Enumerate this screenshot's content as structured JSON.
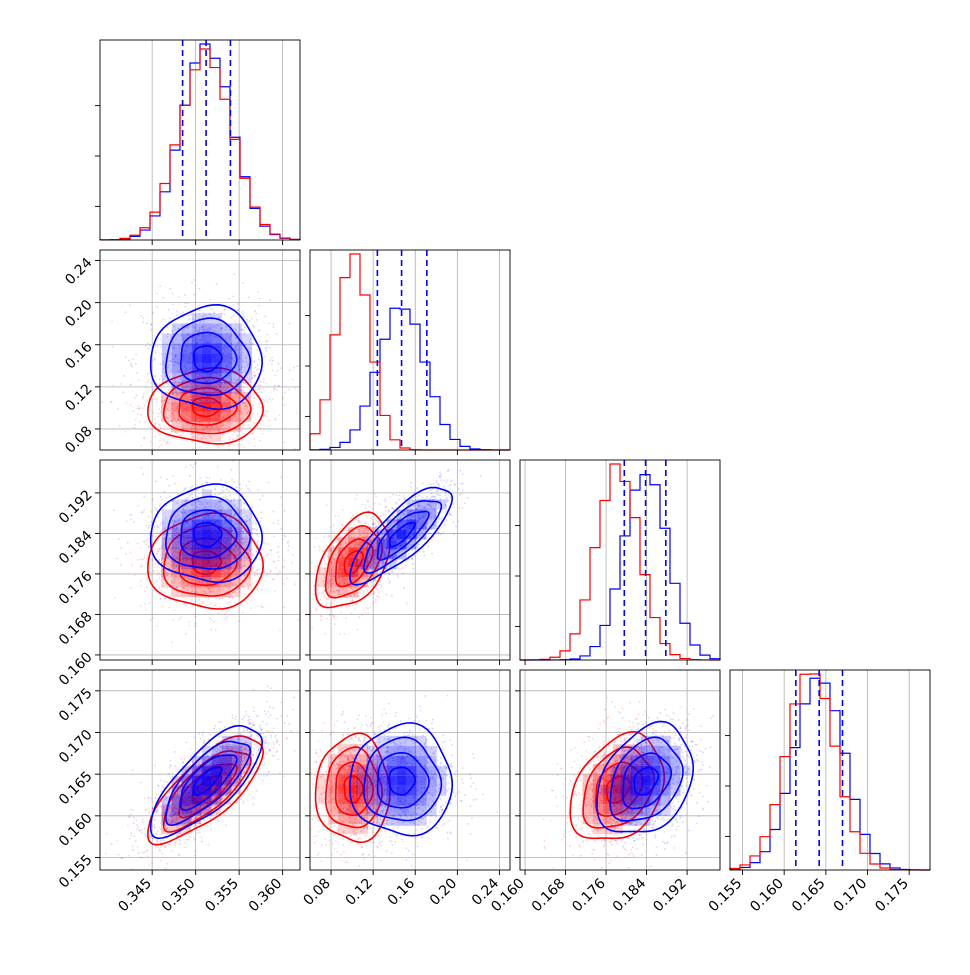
{
  "chart_data": {
    "type": "corner",
    "grid": true,
    "colors": {
      "series_a": "#0000ff",
      "series_b": "#ff0000",
      "frame": "#000000",
      "grid": "#b0b0b0"
    },
    "parameters": [
      {
        "range": [
          0.339,
          0.362
        ],
        "ticks": [
          0.345,
          0.35,
          0.355,
          0.36
        ],
        "tick_labels": [
          "0.345",
          "0.350",
          "0.355",
          "0.360"
        ],
        "mean_a": 0.3513,
        "sd_a": 0.0029,
        "mean_b": 0.3512,
        "sd_b": 0.003,
        "quantiles_a": [
          0.3485,
          0.3512,
          0.354
        ]
      },
      {
        "range": [
          0.06,
          0.25
        ],
        "ticks": [
          0.08,
          0.12,
          0.16,
          0.2,
          0.24
        ],
        "tick_labels": [
          "0.08",
          "0.12",
          "0.16",
          "0.20",
          "0.24"
        ],
        "mean_a": 0.147,
        "sd_a": 0.022,
        "mean_b": 0.101,
        "sd_b": 0.016,
        "quantiles_a": [
          0.124,
          0.147,
          0.171
        ]
      },
      {
        "range": [
          0.159,
          0.1985
        ],
        "ticks": [
          0.16,
          0.168,
          0.176,
          0.184,
          0.192
        ],
        "tick_labels": [
          "0.160",
          "0.168",
          "0.176",
          "0.184",
          "0.192"
        ],
        "mean_a": 0.1838,
        "sd_a": 0.0043,
        "mean_b": 0.1783,
        "sd_b": 0.0042,
        "quantiles_a": [
          0.1796,
          0.1838,
          0.1878
        ]
      },
      {
        "range": [
          0.1535,
          0.1775
        ],
        "ticks": [
          0.155,
          0.16,
          0.165,
          0.17,
          0.175
        ],
        "tick_labels": [
          "0.155",
          "0.160",
          "0.165",
          "0.170",
          "0.175"
        ],
        "mean_a": 0.1642,
        "sd_a": 0.003,
        "mean_b": 0.1632,
        "sd_b": 0.0029,
        "quantiles_a": [
          0.1614,
          0.1642,
          0.167
        ]
      }
    ],
    "correlations": {
      "1-0": {
        "a": 0.0,
        "b": 0.0
      },
      "2-0": {
        "a": 0.0,
        "b": 0.0
      },
      "2-1": {
        "a": 0.8,
        "b": 0.45
      },
      "3-0": {
        "a": 0.75,
        "b": 0.75
      },
      "3-1": {
        "a": 0.0,
        "b": 0.0
      },
      "3-2": {
        "a": 0.3,
        "b": 0.3
      }
    },
    "contour_levels_sigma": [
      0.5,
      1.0,
      1.5,
      2.0
    ]
  }
}
